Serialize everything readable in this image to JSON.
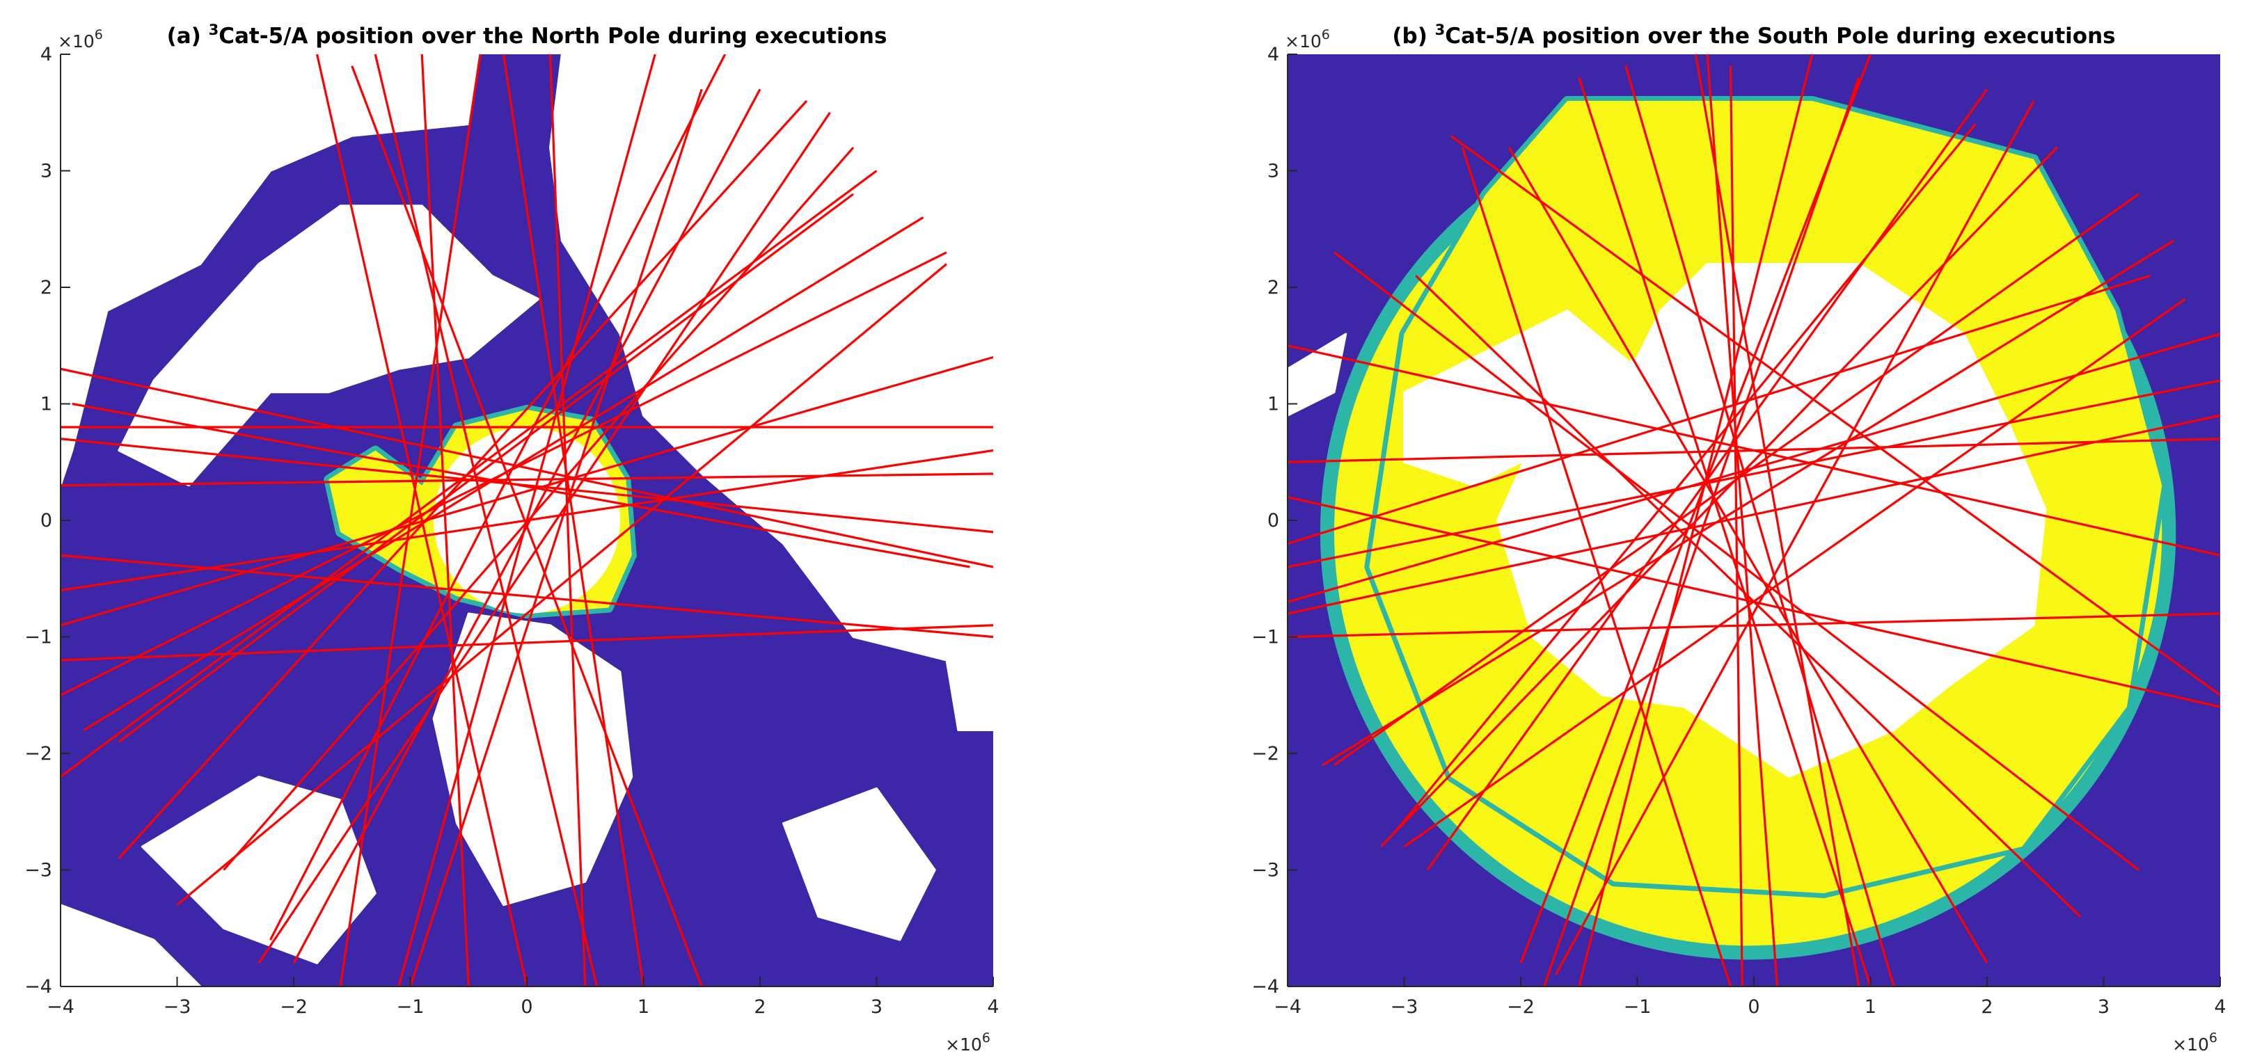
{
  "chart_data": [
    {
      "type": "map",
      "title_prefix": "(a) ",
      "title_sup": "3",
      "title_main": "Cat-5/A position over the North Pole during executions",
      "xlim": [
        -4000000,
        4000000
      ],
      "ylim": [
        -4000000,
        4000000
      ],
      "x_ticks": [
        "−4",
        "−3",
        "−2",
        "−1",
        "0",
        "1",
        "2",
        "3",
        "4"
      ],
      "y_ticks": [
        "−4",
        "−3",
        "−2",
        "−1",
        "0",
        "1",
        "2",
        "3",
        "4"
      ],
      "x_multiplier": "×10",
      "y_multiplier": "×10",
      "multiplier_exp": "6",
      "grid": false,
      "colors": {
        "ocean": "#3d26a8",
        "land": "#ffffff",
        "ice_edge": "#2bb6a8",
        "ice": "#f9f716",
        "track": "#ff0000"
      },
      "pole_hole": {
        "cx": 0.0,
        "cy": 0.0,
        "r": 0.8
      },
      "ice_patch": [
        [
          -0.9,
          0.3
        ],
        [
          -0.6,
          0.8
        ],
        [
          0.0,
          0.95
        ],
        [
          0.55,
          0.85
        ],
        [
          0.85,
          0.35
        ],
        [
          0.9,
          -0.3
        ],
        [
          0.7,
          -0.75
        ],
        [
          0.0,
          -0.8
        ],
        [
          -0.6,
          -0.65
        ],
        [
          -1.1,
          -0.4
        ],
        [
          -1.6,
          -0.1
        ],
        [
          -1.7,
          0.35
        ],
        [
          -1.3,
          0.6
        ]
      ],
      "land_masses": [
        [
          [
            -3.8,
            4
          ],
          [
            -0.4,
            4
          ],
          [
            -0.5,
            3.4
          ],
          [
            -1.5,
            3.3
          ],
          [
            -2.2,
            3.0
          ],
          [
            -2.8,
            2.2
          ],
          [
            -3.6,
            1.8
          ],
          [
            -3.9,
            0.6
          ],
          [
            -4,
            0.3
          ],
          [
            -4,
            4
          ]
        ],
        [
          [
            -2.3,
            2.2
          ],
          [
            -1.6,
            2.7
          ],
          [
            -0.9,
            2.7
          ],
          [
            -0.3,
            2.1
          ],
          [
            0.1,
            1.9
          ],
          [
            -0.5,
            1.4
          ],
          [
            -1.1,
            1.3
          ],
          [
            -1.7,
            1.1
          ],
          [
            -2.2,
            1.1
          ],
          [
            -2.9,
            0.3
          ],
          [
            -3.5,
            0.6
          ],
          [
            -3.2,
            1.2
          ]
        ],
        [
          [
            0.3,
            4
          ],
          [
            4,
            4
          ],
          [
            4,
            -1.8
          ],
          [
            3.7,
            -1.8
          ],
          [
            3.6,
            -1.2
          ],
          [
            2.8,
            -1.0
          ],
          [
            2.2,
            -0.2
          ],
          [
            1.5,
            0.4
          ],
          [
            1.0,
            0.9
          ],
          [
            0.8,
            1.6
          ],
          [
            0.3,
            2.4
          ],
          [
            0.2,
            3.2
          ]
        ],
        [
          [
            -0.5,
            -0.8
          ],
          [
            0.2,
            -0.9
          ],
          [
            0.8,
            -1.3
          ],
          [
            0.9,
            -2.2
          ],
          [
            0.5,
            -3.1
          ],
          [
            -0.2,
            -3.3
          ],
          [
            -0.6,
            -2.6
          ],
          [
            -0.8,
            -1.7
          ]
        ],
        [
          [
            -3.3,
            -2.8
          ],
          [
            -2.3,
            -2.2
          ],
          [
            -1.6,
            -2.4
          ],
          [
            -1.3,
            -3.2
          ],
          [
            -1.8,
            -3.8
          ],
          [
            -2.6,
            -3.5
          ]
        ],
        [
          [
            2.2,
            -2.6
          ],
          [
            3.0,
            -2.3
          ],
          [
            3.5,
            -3.0
          ],
          [
            3.2,
            -3.6
          ],
          [
            2.5,
            -3.4
          ]
        ],
        [
          [
            -4,
            -3.3
          ],
          [
            -3.2,
            -3.6
          ],
          [
            -2.8,
            -4
          ],
          [
            -4,
            -4
          ]
        ]
      ],
      "tracks": [
        [
          [
            -1.8,
            4
          ],
          [
            0.0,
            -4
          ]
        ],
        [
          [
            -1.3,
            4
          ],
          [
            0.6,
            -4
          ]
        ],
        [
          [
            -0.9,
            4
          ],
          [
            -0.5,
            -4
          ]
        ],
        [
          [
            -0.4,
            4
          ],
          [
            -1.6,
            -4
          ]
        ],
        [
          [
            1.7,
            4
          ],
          [
            -2.2,
            -3.6
          ]
        ],
        [
          [
            2.4,
            3.6
          ],
          [
            -3.5,
            -2.9
          ]
        ],
        [
          [
            3.0,
            3.0
          ],
          [
            -4,
            -2.2
          ]
        ],
        [
          [
            3.6,
            2.3
          ],
          [
            -4,
            -1.5
          ]
        ],
        [
          [
            4,
            1.4
          ],
          [
            -4,
            -0.9
          ]
        ],
        [
          [
            4,
            0.8
          ],
          [
            -4,
            0.8
          ]
        ],
        [
          [
            4,
            0.4
          ],
          [
            -4,
            0.3
          ]
        ],
        [
          [
            4,
            -0.4
          ],
          [
            -4,
            1.3
          ]
        ],
        [
          [
            4,
            -1.0
          ],
          [
            -4,
            -0.3
          ]
        ],
        [
          [
            4,
            -0.9
          ],
          [
            -4,
            -1.2
          ]
        ],
        [
          [
            -3.9,
            1.0
          ],
          [
            3.8,
            -0.4
          ]
        ],
        [
          [
            -3.5,
            -1.9
          ],
          [
            2.8,
            2.8
          ]
        ],
        [
          [
            -2.3,
            -3.8
          ],
          [
            2.6,
            3.5
          ]
        ],
        [
          [
            -1.1,
            -4
          ],
          [
            1.1,
            4
          ]
        ],
        [
          [
            0.5,
            -4
          ],
          [
            0.2,
            4
          ]
        ],
        [
          [
            1.0,
            -4
          ],
          [
            -0.2,
            4
          ]
        ],
        [
          [
            -3.0,
            -3.3
          ],
          [
            3.6,
            2.2
          ]
        ],
        [
          [
            -2.0,
            -3.8
          ],
          [
            2.0,
            3.7
          ]
        ],
        [
          [
            -4,
            -0.6
          ],
          [
            4,
            0.6
          ]
        ],
        [
          [
            -4,
            0.7
          ],
          [
            4,
            -0.1
          ]
        ],
        [
          [
            1.5,
            3.7
          ],
          [
            -1.0,
            -4
          ]
        ],
        [
          [
            2.8,
            3.2
          ],
          [
            -2.6,
            -3.0
          ]
        ],
        [
          [
            3.4,
            2.6
          ],
          [
            -3.8,
            -1.8
          ]
        ],
        [
          [
            -1.5,
            3.9
          ],
          [
            1.5,
            -4
          ]
        ]
      ]
    },
    {
      "type": "map",
      "title_prefix": "(b) ",
      "title_sup": "3",
      "title_main": "Cat-5/A position over the South Pole during executions",
      "xlim": [
        -4000000,
        4000000
      ],
      "ylim": [
        -4000000,
        4000000
      ],
      "x_ticks": [
        "−4",
        "−3",
        "−2",
        "−1",
        "0",
        "1",
        "2",
        "3",
        "4"
      ],
      "y_ticks": [
        "−4",
        "−3",
        "−2",
        "−1",
        "0",
        "1",
        "2",
        "3",
        "4"
      ],
      "x_multiplier": "×10",
      "y_multiplier": "×10",
      "multiplier_exp": "6",
      "grid": false,
      "colors": {
        "ocean": "#3d26a8",
        "land": "#ffffff",
        "ice_edge": "#2bb6a8",
        "ice": "#f9f716",
        "track": "#ff0000"
      },
      "pole_hole": {
        "cx": 0.0,
        "cy": 0.0,
        "r": 0.82
      },
      "ice_ring": {
        "cx": -0.05,
        "cy": -0.1,
        "rx": 3.55,
        "ry": 3.55,
        "edge": 0.12
      },
      "ice_patch": [
        [
          -1.6,
          3.6
        ],
        [
          0.5,
          3.6
        ],
        [
          2.4,
          3.1
        ],
        [
          3.1,
          1.8
        ],
        [
          3.5,
          0.3
        ],
        [
          3.2,
          -1.6
        ],
        [
          2.3,
          -2.8
        ],
        [
          0.6,
          -3.2
        ],
        [
          -1.2,
          -3.1
        ],
        [
          -2.6,
          -2.2
        ],
        [
          -3.3,
          -0.4
        ],
        [
          -3.0,
          1.6
        ],
        [
          -2.3,
          2.8
        ]
      ],
      "land_masses": [
        [
          [
            -0.4,
            2.2
          ],
          [
            0.9,
            2.2
          ],
          [
            1.8,
            1.6
          ],
          [
            2.2,
            0.8
          ],
          [
            2.5,
            0.1
          ],
          [
            2.4,
            -0.9
          ],
          [
            1.7,
            -1.4
          ],
          [
            1.2,
            -1.8
          ],
          [
            0.3,
            -2.2
          ],
          [
            -0.6,
            -1.6
          ],
          [
            -1.3,
            -1.5
          ],
          [
            -1.9,
            -1.0
          ],
          [
            -2.2,
            0.0
          ],
          [
            -1.8,
            0.9
          ],
          [
            -1.0,
            1.4
          ],
          [
            -0.8,
            1.8
          ]
        ],
        [
          [
            -3.0,
            1.1
          ],
          [
            -1.6,
            1.8
          ],
          [
            -1.0,
            1.3
          ],
          [
            -1.6,
            0.7
          ],
          [
            -2.4,
            0.3
          ],
          [
            -3.0,
            0.5
          ]
        ],
        [
          [
            -4,
            1.3
          ],
          [
            -3.5,
            1.6
          ],
          [
            -3.6,
            1.1
          ],
          [
            -4,
            0.9
          ]
        ]
      ],
      "tracks": [
        [
          [
            -2.5,
            3.2
          ],
          [
            -0.2,
            -4
          ]
        ],
        [
          [
            -1.5,
            3.8
          ],
          [
            1.0,
            -4
          ]
        ],
        [
          [
            -0.5,
            4
          ],
          [
            0.9,
            -4
          ]
        ],
        [
          [
            0.5,
            4
          ],
          [
            -1.5,
            -4
          ]
        ],
        [
          [
            1.0,
            4
          ],
          [
            -2.0,
            -3.8
          ]
        ],
        [
          [
            2.0,
            3.7
          ],
          [
            -2.8,
            -3.0
          ]
        ],
        [
          [
            2.6,
            3.2
          ],
          [
            -3.2,
            -2.8
          ]
        ],
        [
          [
            3.3,
            2.8
          ],
          [
            -3.6,
            -2.1
          ]
        ],
        [
          [
            4,
            1.6
          ],
          [
            -4,
            -0.7
          ]
        ],
        [
          [
            4,
            1.2
          ],
          [
            -4,
            -0.4
          ]
        ],
        [
          [
            4,
            0.7
          ],
          [
            -4,
            0.5
          ]
        ],
        [
          [
            4,
            -0.3
          ],
          [
            -4,
            1.5
          ]
        ],
        [
          [
            4,
            -0.8
          ],
          [
            -4,
            -1.0
          ]
        ],
        [
          [
            -3.6,
            2.3
          ],
          [
            3.3,
            -3.0
          ]
        ],
        [
          [
            -2.9,
            2.1
          ],
          [
            2.8,
            -3.4
          ]
        ],
        [
          [
            -2.1,
            3.2
          ],
          [
            2.0,
            -3.8
          ]
        ],
        [
          [
            -1.1,
            3.9
          ],
          [
            1.2,
            -4
          ]
        ],
        [
          [
            -0.2,
            3.9
          ],
          [
            -0.1,
            -4
          ]
        ],
        [
          [
            0.9,
            3.8
          ],
          [
            -1.8,
            -4
          ]
        ],
        [
          [
            1.9,
            3.4
          ],
          [
            -3.1,
            -2.7
          ]
        ],
        [
          [
            3.6,
            2.4
          ],
          [
            -3.7,
            -2.1
          ]
        ],
        [
          [
            -4,
            -0.8
          ],
          [
            4,
            0.9
          ]
        ],
        [
          [
            -4,
            0.2
          ],
          [
            4,
            -1.6
          ]
        ],
        [
          [
            -3.0,
            -2.8
          ],
          [
            3.7,
            1.9
          ]
        ],
        [
          [
            -1.7,
            -3.9
          ],
          [
            2.4,
            3.6
          ]
        ],
        [
          [
            0.2,
            -4
          ],
          [
            -0.4,
            4
          ]
        ],
        [
          [
            -4,
            -0.2
          ],
          [
            3.4,
            2.1
          ]
        ],
        [
          [
            4,
            -1.5
          ],
          [
            -2.6,
            3.3
          ]
        ]
      ]
    }
  ]
}
